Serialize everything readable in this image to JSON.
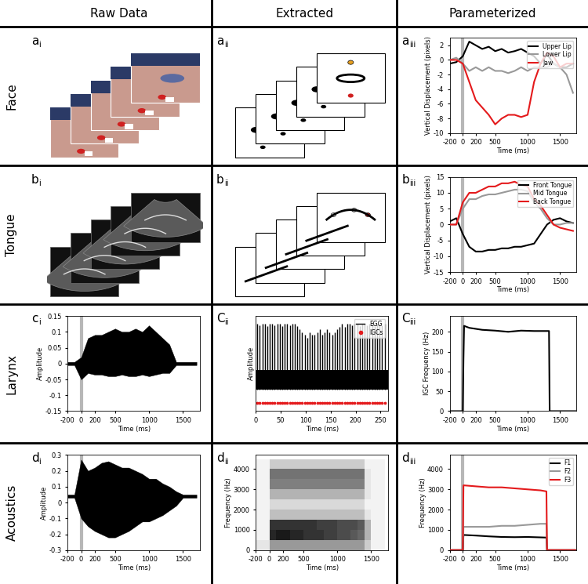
{
  "column_headers": [
    "Raw Data",
    "Extracted",
    "Parameterized"
  ],
  "row_headers": [
    "Face",
    "Tongue",
    "Larynx",
    "Acoustics"
  ],
  "chart_data": [
    {
      "panel": "ai",
      "type": "image"
    },
    {
      "panel": "aii",
      "type": "image"
    },
    {
      "panel": "aiii",
      "type": "line",
      "xlabel": "Time (ms)",
      "ylabel": "Vertical Displacement (pixels)",
      "xlim": [
        -200,
        1750
      ],
      "xticks": [
        -200,
        0,
        200,
        500,
        1000,
        1500
      ],
      "ylim": [
        -10,
        3
      ],
      "yticks": [
        -10,
        -8,
        -6,
        -4,
        -2,
        0,
        2
      ],
      "onset": 0,
      "legend": "upper right",
      "x": [
        -200,
        -100,
        0,
        100,
        200,
        300,
        400,
        500,
        600,
        700,
        800,
        900,
        1000,
        1100,
        1200,
        1300,
        1400,
        1500,
        1600,
        1700
      ],
      "series": [
        {
          "name": "Upper Lip",
          "color": "#000000",
          "values": [
            -0.5,
            -0.3,
            0.5,
            2.5,
            2,
            1.5,
            1.8,
            1.2,
            1.5,
            1,
            1.2,
            1.5,
            1,
            0.5,
            -0.5,
            0.8,
            -0.5,
            -1,
            -1,
            -0.5
          ]
        },
        {
          "name": "Lower Lip",
          "color": "#999999",
          "values": [
            0,
            0.3,
            -0.5,
            -1.5,
            -1,
            -1.5,
            -1,
            -1.5,
            -1.5,
            -1.8,
            -1.5,
            -1,
            -1.5,
            -1,
            -1,
            -1,
            -0.5,
            -1,
            -2,
            -4.5
          ]
        },
        {
          "name": "Jaw",
          "color": "#e41a1c",
          "values": [
            0,
            0,
            -0.5,
            -3,
            -5.5,
            -6.5,
            -7.5,
            -8.8,
            -8,
            -7.5,
            -7.5,
            -7.8,
            -7.5,
            -3,
            -0.5,
            1,
            0.5,
            -1,
            -0.5,
            -0.5
          ]
        }
      ]
    },
    {
      "panel": "bi",
      "type": "image"
    },
    {
      "panel": "bii",
      "type": "image"
    },
    {
      "panel": "biii",
      "type": "line",
      "xlabel": "Time (ms)",
      "ylabel": "Vertical Displacement (pixels)",
      "xlim": [
        -200,
        1750
      ],
      "xticks": [
        -200,
        0,
        200,
        500,
        1000,
        1500
      ],
      "ylim": [
        -15,
        15
      ],
      "yticks": [
        -15,
        -10,
        -5,
        0,
        5,
        10,
        15
      ],
      "onset": 0,
      "legend": "upper right",
      "x": [
        -200,
        -100,
        0,
        100,
        200,
        300,
        400,
        500,
        600,
        700,
        800,
        900,
        1000,
        1100,
        1200,
        1300,
        1400,
        1500,
        1600,
        1700
      ],
      "series": [
        {
          "name": "Front Tongue",
          "color": "#000000",
          "values": [
            1,
            2,
            -3,
            -7,
            -8.5,
            -8.5,
            -8,
            -8,
            -7.5,
            -7.5,
            -7,
            -7,
            -6.5,
            -6,
            -3,
            0,
            1.5,
            2,
            1,
            0.5
          ]
        },
        {
          "name": "Mid Tongue",
          "color": "#999999",
          "values": [
            0,
            0,
            5,
            8,
            8,
            9,
            9.5,
            9.5,
            10,
            10.5,
            11,
            11,
            10.5,
            7,
            5,
            2,
            0,
            0,
            0.5,
            0.5
          ]
        },
        {
          "name": "Back Tongue",
          "color": "#e41a1c",
          "values": [
            0,
            0,
            7,
            10,
            10,
            11,
            12,
            12,
            13,
            13,
            13.5,
            12.5,
            12,
            8,
            6,
            3,
            0,
            -1,
            -1.5,
            -2
          ]
        }
      ]
    },
    {
      "panel": "ci",
      "type": "waveform",
      "xlabel": "Time (ms)",
      "ylabel": "Amplitude",
      "xlim": [
        -200,
        1750
      ],
      "xticks": [
        -200,
        0,
        200,
        500,
        1000,
        1500
      ],
      "ylim": [
        -0.15,
        0.15
      ],
      "yticks": [
        -0.15,
        -0.1,
        -0.05,
        0,
        0.05,
        0.1,
        0.15
      ],
      "onset": 0,
      "color": "#000000",
      "x": [
        -200,
        -100,
        0,
        100,
        200,
        300,
        400,
        500,
        600,
        700,
        800,
        900,
        1000,
        1100,
        1200,
        1300,
        1400,
        1500,
        1600,
        1700
      ],
      "upper": [
        0.005,
        0.005,
        0.02,
        0.08,
        0.09,
        0.09,
        0.1,
        0.11,
        0.1,
        0.1,
        0.11,
        0.1,
        0.12,
        0.1,
        0.08,
        0.06,
        0.005,
        0.005,
        0.005,
        0.005
      ],
      "lower": [
        -0.005,
        -0.005,
        -0.05,
        -0.03,
        -0.035,
        -0.035,
        -0.04,
        -0.04,
        -0.035,
        -0.04,
        -0.04,
        -0.035,
        -0.04,
        -0.035,
        -0.03,
        -0.03,
        -0.005,
        -0.005,
        -0.005,
        -0.005
      ]
    },
    {
      "panel": "Cii",
      "type": "egg",
      "xlabel": "Time (ms)",
      "ylabel": "Amplitude",
      "xlim": [
        0,
        265
      ],
      "xticks": [
        0,
        50,
        100,
        150,
        200,
        250
      ],
      "ylim": [
        -0.6,
        1.15
      ],
      "tick_labels": "x",
      "legend": "upper right",
      "series": [
        {
          "name": "EGG",
          "color": "#000000",
          "band": [
            -0.2,
            0.15
          ],
          "x": [
            3,
            8,
            13,
            18,
            23,
            28,
            33,
            38,
            43,
            48,
            53,
            58,
            63,
            68,
            73,
            78,
            83,
            88,
            93,
            98,
            103,
            108,
            113,
            118,
            123,
            128,
            133,
            138,
            143,
            148,
            153,
            158,
            163,
            168,
            173,
            178,
            183,
            188,
            193,
            198,
            203,
            208,
            213,
            218,
            223,
            228,
            233,
            238,
            243,
            248,
            253,
            258
          ],
          "values": [
            1,
            0.98,
            1,
            1,
            0.97,
            1,
            1,
            0.98,
            1,
            1,
            0.97,
            1,
            1,
            0.98,
            1,
            1,
            0.97,
            0.9,
            0.85,
            0.8,
            0.75,
            0.85,
            0.8,
            0.8,
            0.85,
            0.9,
            0.8,
            0.85,
            0.9,
            0.85,
            0.8,
            0.85,
            0.9,
            0.95,
            1,
            0.95,
            1,
            1,
            0.98,
            1,
            1,
            0.97,
            1,
            1,
            0.98,
            1,
            1,
            0.97,
            1,
            1,
            0.98,
            1
          ]
        },
        {
          "name": "IGCs",
          "color": "#e41a1c",
          "marker": "o",
          "level": -0.45
        }
      ]
    },
    {
      "panel": "Ciii",
      "type": "line",
      "xlabel": "Time (ms)",
      "ylabel": "IGC Frequency (Hz)",
      "xlim": [
        -200,
        1750
      ],
      "xticks": [
        -200,
        0,
        200,
        500,
        1000,
        1500
      ],
      "ylim": [
        0,
        240
      ],
      "yticks": [
        0,
        50,
        100,
        150,
        200
      ],
      "onset": 0,
      "series": [
        {
          "color": "#000000",
          "x": [
            -200,
            0,
            10,
            20,
            100,
            300,
            500,
            700,
            900,
            1100,
            1300,
            1330,
            1340,
            1750
          ],
          "values": [
            0,
            0,
            130,
            215,
            210,
            205,
            203,
            200,
            203,
            202,
            202,
            202,
            0,
            0
          ]
        }
      ]
    },
    {
      "panel": "di",
      "type": "waveform",
      "xlabel": "Time (ms)",
      "ylabel": "Amplitude",
      "xlim": [
        -200,
        1750
      ],
      "xticks": [
        -200,
        0,
        200,
        500,
        1000,
        1500
      ],
      "ylim": [
        -0.3,
        0.3
      ],
      "yticks": [
        -0.3,
        -0.2,
        -0.1,
        0,
        0.1,
        0.2,
        0.3
      ],
      "onset": 0,
      "color": "#000000",
      "x": [
        -200,
        -100,
        0,
        100,
        200,
        300,
        400,
        500,
        600,
        700,
        800,
        900,
        1000,
        1100,
        1200,
        1300,
        1400,
        1500,
        1600,
        1700
      ],
      "upper": [
        0.05,
        0.05,
        0.27,
        0.2,
        0.22,
        0.25,
        0.26,
        0.24,
        0.22,
        0.22,
        0.2,
        0.18,
        0.15,
        0.15,
        0.12,
        0.1,
        0.07,
        0.05,
        0.05,
        0.05
      ],
      "lower": [
        0.03,
        0.03,
        -0.1,
        -0.15,
        -0.18,
        -0.2,
        -0.22,
        -0.22,
        -0.2,
        -0.18,
        -0.15,
        -0.12,
        -0.12,
        -0.1,
        -0.08,
        -0.05,
        -0.02,
        0.03,
        0.03,
        0.03
      ]
    },
    {
      "panel": "dii",
      "type": "spectrogram",
      "xlabel": "Time (ms)",
      "ylabel": "Frequency (Hz)",
      "xlim": [
        -200,
        1750
      ],
      "xticks": [
        -200,
        0,
        200,
        500,
        1000,
        1500
      ],
      "ylim": [
        0,
        4700
      ],
      "yticks": [
        0,
        1000,
        2000,
        3000,
        4000
      ],
      "clim": [
        0,
        1
      ],
      "time_edges": [
        -200,
        -100,
        0,
        100,
        200,
        300,
        400,
        500,
        600,
        700,
        800,
        900,
        1000,
        1100,
        1200,
        1300,
        1400,
        1500,
        1600,
        1700
      ],
      "freq_edges": [
        0,
        500,
        1000,
        1500,
        2000,
        2500,
        3000,
        3500,
        4000,
        4500
      ],
      "cells": [
        [
          0.1,
          0.1,
          0.4,
          0.4,
          0.4,
          0.4,
          0.4,
          0.4,
          0.4,
          0.4,
          0.4,
          0.4,
          0.4,
          0.4,
          0.4,
          0.4,
          0.2,
          0.05,
          0.05
        ],
        [
          0.05,
          0.05,
          0.85,
          0.9,
          0.9,
          0.85,
          0.85,
          0.8,
          0.8,
          0.8,
          0.75,
          0.75,
          0.7,
          0.7,
          0.65,
          0.6,
          0.3,
          0.05,
          0.05
        ],
        [
          0.05,
          0.05,
          0.8,
          0.8,
          0.8,
          0.8,
          0.8,
          0.8,
          0.8,
          0.75,
          0.75,
          0.75,
          0.7,
          0.7,
          0.7,
          0.65,
          0.3,
          0.05,
          0.05
        ],
        [
          0.05,
          0.05,
          0.25,
          0.25,
          0.25,
          0.25,
          0.25,
          0.25,
          0.25,
          0.25,
          0.25,
          0.25,
          0.25,
          0.25,
          0.25,
          0.25,
          0.1,
          0.05,
          0.05
        ],
        [
          0.05,
          0.05,
          0.15,
          0.15,
          0.15,
          0.15,
          0.15,
          0.15,
          0.15,
          0.15,
          0.15,
          0.15,
          0.15,
          0.15,
          0.15,
          0.15,
          0.05,
          0.05,
          0.05
        ],
        [
          0.05,
          0.05,
          0.3,
          0.3,
          0.3,
          0.3,
          0.3,
          0.3,
          0.3,
          0.3,
          0.3,
          0.3,
          0.3,
          0.3,
          0.3,
          0.3,
          0.1,
          0.05,
          0.05
        ],
        [
          0.05,
          0.05,
          0.5,
          0.5,
          0.5,
          0.5,
          0.5,
          0.5,
          0.5,
          0.5,
          0.5,
          0.5,
          0.5,
          0.5,
          0.5,
          0.5,
          0.1,
          0.05,
          0.05
        ],
        [
          0.05,
          0.05,
          0.55,
          0.55,
          0.55,
          0.55,
          0.55,
          0.55,
          0.55,
          0.55,
          0.55,
          0.55,
          0.55,
          0.55,
          0.55,
          0.55,
          0.1,
          0.05,
          0.05
        ],
        [
          0.05,
          0.05,
          0.2,
          0.2,
          0.2,
          0.2,
          0.2,
          0.2,
          0.2,
          0.2,
          0.2,
          0.2,
          0.2,
          0.2,
          0.2,
          0.2,
          0.05,
          0.05,
          0.05
        ]
      ]
    },
    {
      "panel": "diii",
      "type": "line",
      "xlabel": "Time (ms)",
      "ylabel": "Frequency (Hz)",
      "xlim": [
        -200,
        1750
      ],
      "xticks": [
        -200,
        0,
        200,
        500,
        1000,
        1500
      ],
      "ylim": [
        0,
        4700
      ],
      "yticks": [
        0,
        1000,
        2000,
        3000,
        4000
      ],
      "onset": 0,
      "legend": "upper right",
      "x": [
        -200,
        0,
        10,
        200,
        400,
        600,
        800,
        1000,
        1200,
        1290,
        1300,
        1750
      ],
      "series": [
        {
          "name": "F1",
          "color": "#000000",
          "values": [
            0,
            0,
            750,
            720,
            680,
            650,
            640,
            650,
            630,
            620,
            0,
            0
          ]
        },
        {
          "name": "F2",
          "color": "#999999",
          "values": [
            0,
            0,
            1150,
            1150,
            1150,
            1200,
            1200,
            1250,
            1300,
            1300,
            0,
            0
          ]
        },
        {
          "name": "F3",
          "color": "#e41a1c",
          "values": [
            0,
            0,
            3200,
            3150,
            3100,
            3100,
            3050,
            3000,
            2950,
            2900,
            0,
            0
          ]
        }
      ]
    }
  ]
}
